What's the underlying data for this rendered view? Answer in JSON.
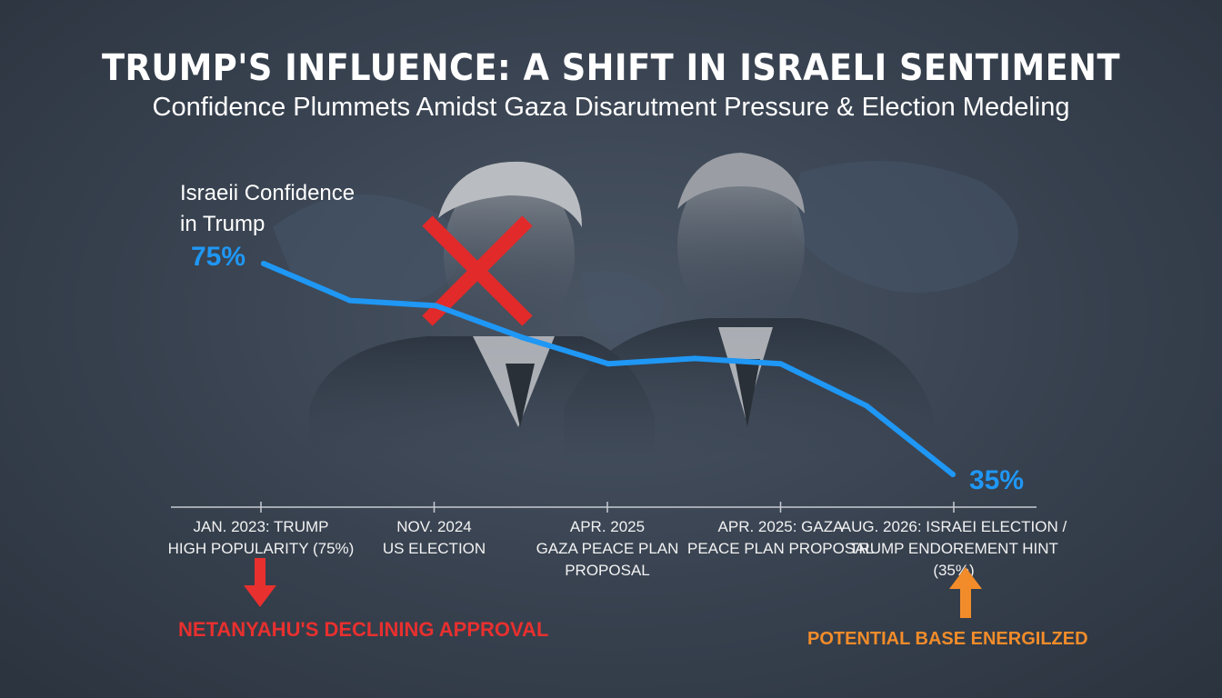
{
  "title": "TRUMP'S INFLUENCE: A SHIFT IN ISRAELI SENTIMENT",
  "subtitle": "Confidence Plummets Amidst Gaza Disarutment Pressure & Election Medeling",
  "chart_data": {
    "type": "line",
    "series": [
      {
        "name": "Israeii Confidence in Trump",
        "x": [
          0,
          1,
          2,
          3,
          4,
          5,
          6,
          7,
          8
        ],
        "y": [
          75,
          68,
          67,
          61,
          56,
          57,
          56,
          48,
          35
        ]
      }
    ],
    "series_label": "Israeii Confidence\nin Trump",
    "start_label": "75%",
    "end_label": "35%",
    "categories": [
      "JAN. 2023: TRUMP\nHIGH POPULARITY (75%)",
      "NOV. 2024\nUS ELECTION",
      "APR. 2025\nGAZA PEACE PLAN PROPOSAL",
      "APR. 2025: GAZA\nPEACE PLAN PROPOSAL",
      "AUG. 2026: ISRAEI ELECTION /\nTRUMP ENDOREMENT HINT (35%)"
    ],
    "ylim": [
      30,
      80
    ],
    "grid": false,
    "line_color": "#1f97f5"
  },
  "annotations": {
    "left": {
      "text": "NETANYAHU'S DECLINING APPROVAL",
      "color": "#e8302f",
      "arrow": "down"
    },
    "right": {
      "text": "POTENTIAL BASE ENERGILZED",
      "color": "#f28c2a",
      "arrow": "up"
    }
  }
}
